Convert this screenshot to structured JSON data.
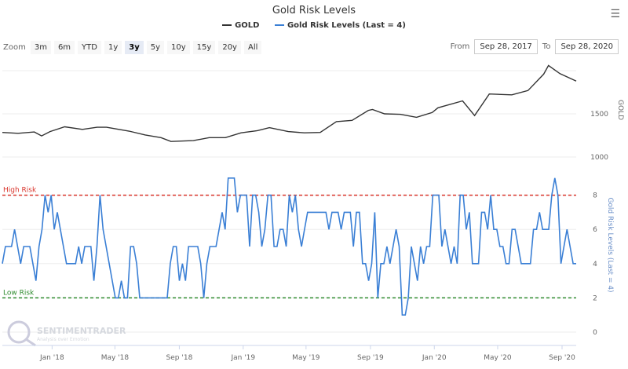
{
  "header": {
    "title": "Gold Risk Levels",
    "menu_icon": "hamburger-menu-icon"
  },
  "legend": [
    {
      "label": "GOLD",
      "color": "#333333"
    },
    {
      "label": "Gold Risk Levels (Last = 4)",
      "color": "#3a7fd5"
    }
  ],
  "zoom": {
    "label": "Zoom",
    "buttons": [
      "3m",
      "6m",
      "YTD",
      "1y",
      "3y",
      "5y",
      "10y",
      "15y",
      "20y",
      "All"
    ],
    "selected": "3y"
  },
  "range": {
    "from_label": "From",
    "from": "Sep 28, 2017",
    "to_label": "To",
    "to": "Sep 28, 2020"
  },
  "watermark": {
    "brand": "SENTIMENTRADER",
    "tagline": "Analysis over Emotion"
  },
  "chart_data": [
    {
      "type": "line",
      "series": [
        {
          "name": "GOLD",
          "color": "#333333",
          "x": [
            "2017-09-28",
            "2017-10-28",
            "2017-11-28",
            "2017-12-12",
            "2017-12-28",
            "2018-01-25",
            "2018-02-28",
            "2018-03-28",
            "2018-04-15",
            "2018-05-28",
            "2018-06-28",
            "2018-07-28",
            "2018-08-16",
            "2018-09-28",
            "2018-10-28",
            "2018-11-28",
            "2018-12-28",
            "2019-01-28",
            "2019-02-20",
            "2019-03-28",
            "2019-04-28",
            "2019-05-28",
            "2019-06-28",
            "2019-07-28",
            "2019-08-28",
            "2019-09-05",
            "2019-09-28",
            "2019-10-28",
            "2019-11-28",
            "2019-12-28",
            "2020-01-08",
            "2020-02-24",
            "2020-03-18",
            "2020-04-15",
            "2020-05-28",
            "2020-06-28",
            "2020-07-28",
            "2020-08-06",
            "2020-08-28",
            "2020-09-28"
          ],
          "y": [
            1285,
            1275,
            1290,
            1245,
            1295,
            1350,
            1320,
            1345,
            1345,
            1300,
            1255,
            1225,
            1180,
            1190,
            1225,
            1225,
            1280,
            1305,
            1340,
            1295,
            1280,
            1285,
            1410,
            1425,
            1540,
            1550,
            1500,
            1495,
            1460,
            1515,
            1570,
            1650,
            1480,
            1730,
            1720,
            1770,
            1960,
            2060,
            1965,
            1880
          ]
        }
      ],
      "ylabel": "GOLD",
      "yticks": [
        1000,
        1500
      ],
      "ylim": [
        880,
        2090
      ],
      "grid": true
    },
    {
      "type": "line",
      "series": [
        {
          "name": "Gold Risk Levels (Last = 4)",
          "color": "#3a7fd5",
          "values": [
            4,
            5,
            5,
            5,
            6,
            5,
            4,
            5,
            5,
            5,
            4,
            3,
            5,
            6,
            8,
            7,
            8,
            6,
            7,
            6,
            5,
            4,
            4,
            4,
            4,
            5,
            4,
            5,
            5,
            5,
            3,
            5,
            8,
            6,
            5,
            4,
            3,
            2,
            2,
            3,
            2,
            2,
            5,
            5,
            4,
            2,
            2,
            2,
            2,
            2,
            2,
            2,
            2,
            2,
            2,
            4,
            5,
            5,
            3,
            4,
            3,
            5,
            5,
            5,
            5,
            4,
            2,
            4,
            5,
            5,
            5,
            6,
            7,
            6,
            9,
            9,
            9,
            7,
            8,
            8,
            8,
            5,
            8,
            8,
            7,
            5,
            6,
            8,
            8,
            5,
            5,
            6,
            6,
            5,
            8,
            7,
            8,
            6,
            5,
            6,
            7,
            7,
            7,
            7,
            7,
            7,
            7,
            6,
            7,
            7,
            7,
            6,
            7,
            7,
            7,
            5,
            7,
            7,
            4,
            4,
            3,
            4,
            7,
            2,
            4,
            4,
            5,
            4,
            5,
            6,
            5,
            1,
            1,
            2,
            5,
            4,
            3,
            5,
            4,
            5,
            5,
            8,
            8,
            8,
            5,
            6,
            5,
            4,
            5,
            4,
            8,
            8,
            6,
            7,
            4,
            4,
            4,
            7,
            7,
            6,
            8,
            6,
            6,
            5,
            5,
            4,
            4,
            6,
            6,
            5,
            4,
            4,
            4,
            4,
            6,
            6,
            7,
            6,
            6,
            6,
            8,
            9,
            8,
            4,
            5,
            6,
            5,
            4,
            4
          ]
        }
      ],
      "ylabel": "Gold Risk Levels (Last = 4)",
      "yticks": [
        0,
        2,
        4,
        6,
        8
      ],
      "ylim": [
        -0.5,
        9
      ],
      "annotations": [
        {
          "label": "High Risk",
          "value": 8,
          "color": "#d9342b"
        },
        {
          "label": "Low Risk",
          "value": 2,
          "color": "#2e8b2e"
        }
      ],
      "grid": true
    }
  ],
  "xaxis": {
    "range": [
      "2017-09-28",
      "2020-09-28"
    ],
    "ticks": [
      {
        "date": "2018-01-01",
        "label": "Jan '18"
      },
      {
        "date": "2018-05-01",
        "label": "May '18"
      },
      {
        "date": "2018-09-01",
        "label": "Sep '18"
      },
      {
        "date": "2019-01-01",
        "label": "Jan '19"
      },
      {
        "date": "2019-05-01",
        "label": "May '19"
      },
      {
        "date": "2019-09-01",
        "label": "Sep '19"
      },
      {
        "date": "2020-01-01",
        "label": "Jan '20"
      },
      {
        "date": "2020-05-01",
        "label": "May '20"
      },
      {
        "date": "2020-09-01",
        "label": "Sep '20"
      }
    ]
  }
}
